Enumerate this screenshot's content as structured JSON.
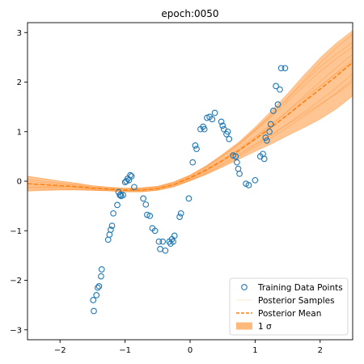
{
  "chart_data": {
    "type": "scatter",
    "title": "epoch:0050",
    "xlabel": "",
    "ylabel": "",
    "xlim": [
      -2.5,
      2.5
    ],
    "ylim": [
      -3.2,
      3.2
    ],
    "xticks": [
      -2,
      -1,
      0,
      1,
      2
    ],
    "yticks": [
      -3,
      -2,
      -1,
      0,
      1,
      2,
      3
    ],
    "grid": false,
    "legend_position": "bottom-right",
    "colors": {
      "points": "#1f77b4",
      "mean": "#ff7f0e",
      "band": "#ff7f0e",
      "samples": "#ff7f0e"
    },
    "legend": [
      {
        "label": "Training Data Points",
        "kind": "marker"
      },
      {
        "label": "Posterior Samples",
        "kind": "faint-line"
      },
      {
        "label": "Posterior Mean",
        "kind": "dashed-line"
      },
      {
        "label": "1 σ",
        "kind": "patch"
      }
    ],
    "series": [
      {
        "name": "Training Data Points",
        "kind": "scatter",
        "x": [
          -1.49,
          -1.48,
          -1.44,
          -1.42,
          -1.4,
          -1.37,
          -1.36,
          -1.26,
          -1.24,
          -1.22,
          -1.2,
          -1.18,
          -1.12,
          -1.1,
          -1.08,
          -1.07,
          -1.06,
          -1.03,
          -1.0,
          -0.98,
          -0.96,
          -0.94,
          -0.92,
          -0.9,
          -0.86,
          -0.72,
          -0.68,
          -0.66,
          -0.62,
          -0.58,
          -0.54,
          -0.48,
          -0.46,
          -0.42,
          -0.38,
          -0.32,
          -0.3,
          -0.28,
          -0.26,
          -0.24,
          -0.16,
          -0.14,
          -0.02,
          0.04,
          0.08,
          0.1,
          0.16,
          0.2,
          0.22,
          0.26,
          0.3,
          0.34,
          0.38,
          0.48,
          0.5,
          0.52,
          0.56,
          0.58,
          0.6,
          0.66,
          0.7,
          0.72,
          0.74,
          0.76,
          0.86,
          0.9,
          1.0,
          1.08,
          1.12,
          1.14,
          1.16,
          1.18,
          1.22,
          1.24,
          1.28,
          1.32,
          1.35,
          1.38,
          1.4,
          1.46
        ],
        "y": [
          -2.4,
          -2.62,
          -2.3,
          -2.15,
          -2.12,
          -1.92,
          -1.78,
          -1.18,
          -1.08,
          -0.98,
          -0.9,
          -0.65,
          -0.48,
          -0.22,
          -0.28,
          -0.27,
          -0.3,
          -0.28,
          -0.02,
          0.0,
          0.05,
          0.02,
          0.12,
          0.1,
          -0.12,
          -0.35,
          -0.47,
          -0.68,
          -0.7,
          -0.95,
          -1.0,
          -1.22,
          -1.37,
          -1.22,
          -1.4,
          -1.22,
          -1.26,
          -1.17,
          -1.22,
          -1.1,
          -0.72,
          -0.65,
          -0.35,
          0.38,
          0.72,
          0.65,
          1.05,
          1.1,
          1.05,
          1.28,
          1.3,
          1.25,
          1.38,
          1.2,
          1.12,
          1.05,
          0.95,
          1.0,
          0.85,
          0.52,
          0.5,
          0.38,
          0.25,
          0.15,
          -0.05,
          -0.08,
          0.02,
          0.5,
          0.55,
          0.45,
          0.88,
          0.82,
          1.0,
          1.15,
          1.42,
          1.92,
          1.55,
          1.85,
          2.28,
          2.28
        ]
      },
      {
        "name": "Posterior Mean",
        "kind": "line",
        "x": [
          -2.5,
          -2.25,
          -2.0,
          -1.75,
          -1.5,
          -1.25,
          -1.0,
          -0.75,
          -0.5,
          -0.25,
          0.0,
          0.25,
          0.5,
          0.75,
          1.0,
          1.25,
          1.5,
          1.75,
          2.0,
          2.25,
          2.5
        ],
        "y": [
          -0.05,
          -0.07,
          -0.09,
          -0.11,
          -0.14,
          -0.16,
          -0.18,
          -0.18,
          -0.15,
          -0.07,
          0.07,
          0.23,
          0.42,
          0.62,
          0.85,
          1.09,
          1.34,
          1.6,
          1.86,
          2.12,
          2.4
        ]
      },
      {
        "name": "1 σ",
        "kind": "band",
        "x": [
          -2.5,
          -2.25,
          -2.0,
          -1.75,
          -1.5,
          -1.25,
          -1.0,
          -0.75,
          -0.5,
          -0.25,
          0.0,
          0.25,
          0.5,
          0.75,
          1.0,
          1.25,
          1.5,
          1.75,
          2.0,
          2.25,
          2.5
        ],
        "lower": [
          -0.2,
          -0.19,
          -0.18,
          -0.18,
          -0.19,
          -0.2,
          -0.22,
          -0.22,
          -0.19,
          -0.12,
          0.0,
          0.13,
          0.28,
          0.44,
          0.6,
          0.75,
          0.92,
          1.08,
          1.25,
          1.46,
          1.72
        ],
        "upper": [
          0.1,
          0.05,
          0.0,
          -0.04,
          -0.09,
          -0.12,
          -0.14,
          -0.13,
          -0.1,
          -0.01,
          0.13,
          0.32,
          0.55,
          0.8,
          1.1,
          1.43,
          1.78,
          2.15,
          2.5,
          2.8,
          3.05
        ]
      }
    ]
  }
}
